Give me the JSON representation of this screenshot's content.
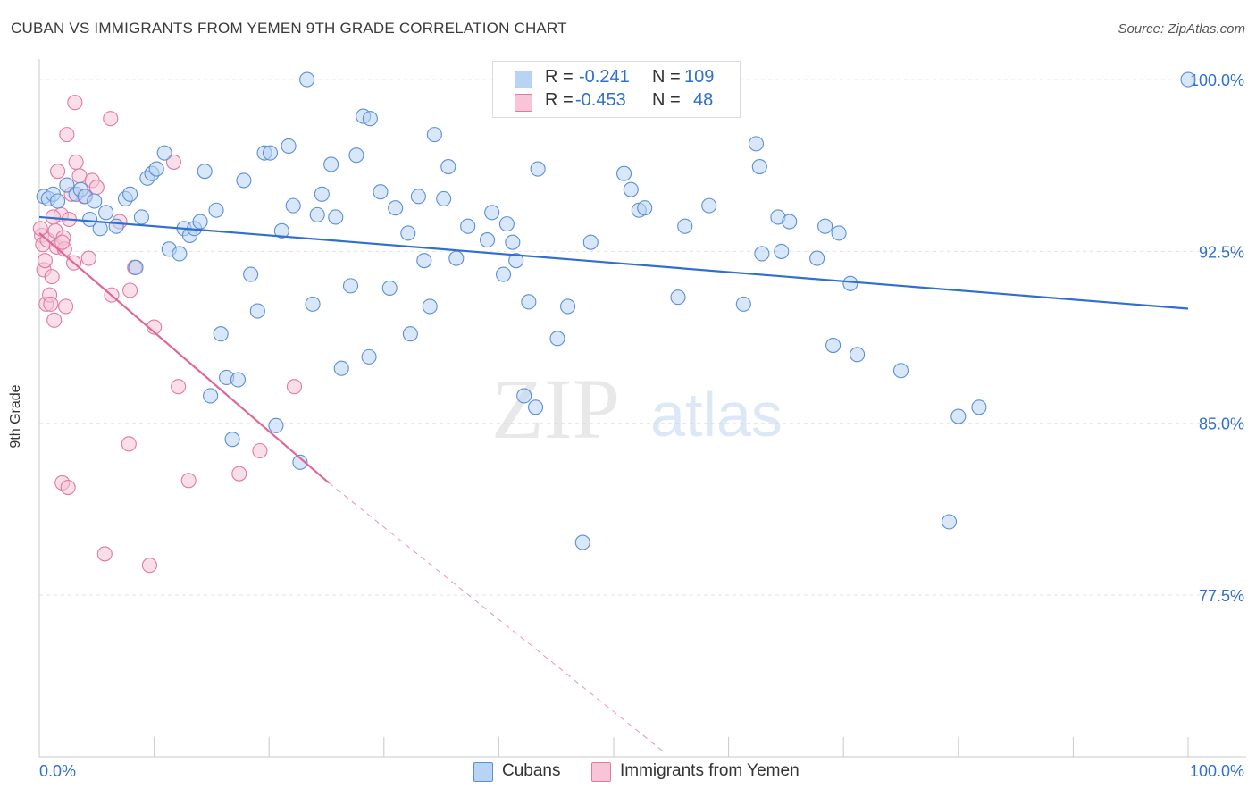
{
  "title": "CUBAN VS IMMIGRANTS FROM YEMEN 9TH GRADE CORRELATION CHART",
  "source": "Source: ZipAtlas.com",
  "watermark": {
    "zip": "ZIP",
    "atlas": "atlas"
  },
  "legend": {
    "rows": [
      {
        "r_label": "R =",
        "r_value": "-0.241",
        "n_label": "N =",
        "n_value": "109",
        "color": "#b8d4f5",
        "border": "#5b8fd6"
      },
      {
        "r_label": "R =",
        "r_value": "-0.453",
        "n_label": "N =",
        "n_value": "48",
        "color": "#f8c4d6",
        "border": "#e07aa0"
      }
    ]
  },
  "bottom_legend": [
    {
      "label": "Cubans",
      "color": "#b8d4f5",
      "border": "#5b8fd6"
    },
    {
      "label": "Immigrants from Yemen",
      "color": "#f8c4d6",
      "border": "#e07aa0"
    }
  ],
  "chart_data": {
    "type": "scatter",
    "title": "CUBAN VS IMMIGRANTS FROM YEMEN 9TH GRADE CORRELATION CHART",
    "ylabel": "9th Grade",
    "xlabel": "",
    "x_tick_labels": [
      "0.0%",
      "100.0%"
    ],
    "y_tick_labels": [
      "100.0%",
      "92.5%",
      "85.0%",
      "77.5%"
    ],
    "y_ticks": [
      100.0,
      92.5,
      85.0,
      77.5
    ],
    "xlim": [
      0,
      100
    ],
    "ylim": [
      70.6,
      100.9
    ],
    "grid": true,
    "colors": {
      "cubans": "#5b8fd6",
      "cubans_fill": "#b8d4f5",
      "yemen": "#e07aa0",
      "yemen_fill": "#f8c4d6",
      "tick_text": "#2f6fd0",
      "blue_line": "#2f6fd0",
      "pink_line": "#e0679a"
    },
    "series": [
      {
        "name": "Cubans",
        "r": -0.241,
        "n": 109,
        "trend": {
          "x": [
            0,
            100
          ],
          "y": [
            94.0,
            90.0
          ]
        },
        "points": [
          [
            0.4,
            94.9
          ],
          [
            0.8,
            94.8
          ],
          [
            1.2,
            95.0
          ],
          [
            1.6,
            94.7
          ],
          [
            2.4,
            95.4
          ],
          [
            3.2,
            95.0
          ],
          [
            3.6,
            95.2
          ],
          [
            4.0,
            94.9
          ],
          [
            4.4,
            93.9
          ],
          [
            4.8,
            94.7
          ],
          [
            5.3,
            93.5
          ],
          [
            5.8,
            94.2
          ],
          [
            6.7,
            93.6
          ],
          [
            7.5,
            94.8
          ],
          [
            7.9,
            95.0
          ],
          [
            8.4,
            91.8
          ],
          [
            8.9,
            94.0
          ],
          [
            9.4,
            95.7
          ],
          [
            9.8,
            95.9
          ],
          [
            10.2,
            96.1
          ],
          [
            10.9,
            96.8
          ],
          [
            11.3,
            92.6
          ],
          [
            12.2,
            92.4
          ],
          [
            12.6,
            93.5
          ],
          [
            13.1,
            93.2
          ],
          [
            13.5,
            93.5
          ],
          [
            14.0,
            93.8
          ],
          [
            14.4,
            96.0
          ],
          [
            14.9,
            86.2
          ],
          [
            15.4,
            94.3
          ],
          [
            15.8,
            88.9
          ],
          [
            16.3,
            87.0
          ],
          [
            16.8,
            84.3
          ],
          [
            17.3,
            86.9
          ],
          [
            17.8,
            95.6
          ],
          [
            18.4,
            91.5
          ],
          [
            19.0,
            89.9
          ],
          [
            19.6,
            96.8
          ],
          [
            20.1,
            96.8
          ],
          [
            20.6,
            84.9
          ],
          [
            21.1,
            93.4
          ],
          [
            21.7,
            97.1
          ],
          [
            22.1,
            94.5
          ],
          [
            22.7,
            83.3
          ],
          [
            23.3,
            100.0
          ],
          [
            23.8,
            90.2
          ],
          [
            24.2,
            94.1
          ],
          [
            24.6,
            95.0
          ],
          [
            25.4,
            96.3
          ],
          [
            25.8,
            94.0
          ],
          [
            26.3,
            87.4
          ],
          [
            27.1,
            91.0
          ],
          [
            27.6,
            96.7
          ],
          [
            28.2,
            98.4
          ],
          [
            28.8,
            98.3
          ],
          [
            29.7,
            95.1
          ],
          [
            28.7,
            87.9
          ],
          [
            30.5,
            90.9
          ],
          [
            31.0,
            94.4
          ],
          [
            32.1,
            93.3
          ],
          [
            32.3,
            88.9
          ],
          [
            33.0,
            94.9
          ],
          [
            33.5,
            92.1
          ],
          [
            34.0,
            90.1
          ],
          [
            34.4,
            97.6
          ],
          [
            35.2,
            94.8
          ],
          [
            35.6,
            96.2
          ],
          [
            36.3,
            92.2
          ],
          [
            37.3,
            93.6
          ],
          [
            39.0,
            93.0
          ],
          [
            39.4,
            94.2
          ],
          [
            40.4,
            91.5
          ],
          [
            40.7,
            93.7
          ],
          [
            41.2,
            92.9
          ],
          [
            41.5,
            92.1
          ],
          [
            42.2,
            86.2
          ],
          [
            42.6,
            90.3
          ],
          [
            43.2,
            85.7
          ],
          [
            43.4,
            96.1
          ],
          [
            45.1,
            88.7
          ],
          [
            46.0,
            90.1
          ],
          [
            47.3,
            79.8
          ],
          [
            48.0,
            92.9
          ],
          [
            50.9,
            95.9
          ],
          [
            51.5,
            95.2
          ],
          [
            52.2,
            94.3
          ],
          [
            52.7,
            94.4
          ],
          [
            55.6,
            90.5
          ],
          [
            56.2,
            93.6
          ],
          [
            58.3,
            94.5
          ],
          [
            61.3,
            90.2
          ],
          [
            62.4,
            97.2
          ],
          [
            62.7,
            96.2
          ],
          [
            62.9,
            92.4
          ],
          [
            64.3,
            94.0
          ],
          [
            64.6,
            92.5
          ],
          [
            65.3,
            93.8
          ],
          [
            67.7,
            92.2
          ],
          [
            68.4,
            93.6
          ],
          [
            69.1,
            88.4
          ],
          [
            69.6,
            93.3
          ],
          [
            70.6,
            91.1
          ],
          [
            71.2,
            88.0
          ],
          [
            75.0,
            87.3
          ],
          [
            79.2,
            80.7
          ],
          [
            80.0,
            85.3
          ],
          [
            81.8,
            85.7
          ],
          [
            100.0,
            100.0
          ]
        ]
      },
      {
        "name": "Immigrants from Yemen",
        "r": -0.453,
        "n": 48,
        "trend": {
          "x": [
            0,
            25.2
          ],
          "y": [
            93.3,
            82.4
          ]
        },
        "trend_extension": {
          "x": [
            25.2,
            54.5
          ],
          "y": [
            82.4,
            70.6
          ]
        },
        "points": [
          [
            0.2,
            93.2
          ],
          [
            0.3,
            92.8
          ],
          [
            0.4,
            91.7
          ],
          [
            0.6,
            90.2
          ],
          [
            0.7,
            93.0
          ],
          [
            0.9,
            90.6
          ],
          [
            1.0,
            90.2
          ],
          [
            1.1,
            91.4
          ],
          [
            1.3,
            89.5
          ],
          [
            1.4,
            93.4
          ],
          [
            1.5,
            92.7
          ],
          [
            1.6,
            96.0
          ],
          [
            1.9,
            94.1
          ],
          [
            2.0,
            82.4
          ],
          [
            2.1,
            93.1
          ],
          [
            2.2,
            92.6
          ],
          [
            2.3,
            90.1
          ],
          [
            2.5,
            82.2
          ],
          [
            2.6,
            93.9
          ],
          [
            2.4,
            97.6
          ],
          [
            2.0,
            92.9
          ],
          [
            2.8,
            95.0
          ],
          [
            3.0,
            92.0
          ],
          [
            3.2,
            96.4
          ],
          [
            3.5,
            95.8
          ],
          [
            3.1,
            99.0
          ],
          [
            3.9,
            94.9
          ],
          [
            4.3,
            92.2
          ],
          [
            4.6,
            95.6
          ],
          [
            5.0,
            95.3
          ],
          [
            5.7,
            79.3
          ],
          [
            6.2,
            98.3
          ],
          [
            6.3,
            90.6
          ],
          [
            7.0,
            93.8
          ],
          [
            7.8,
            84.1
          ],
          [
            7.9,
            90.8
          ],
          [
            8.3,
            91.8
          ],
          [
            9.6,
            78.8
          ],
          [
            10.0,
            89.2
          ],
          [
            11.7,
            96.4
          ],
          [
            12.1,
            86.6
          ],
          [
            13.0,
            82.5
          ],
          [
            17.4,
            82.8
          ],
          [
            19.2,
            83.8
          ],
          [
            22.2,
            86.6
          ],
          [
            0.1,
            93.5
          ],
          [
            0.5,
            92.1
          ],
          [
            1.2,
            94.0
          ]
        ]
      }
    ]
  }
}
